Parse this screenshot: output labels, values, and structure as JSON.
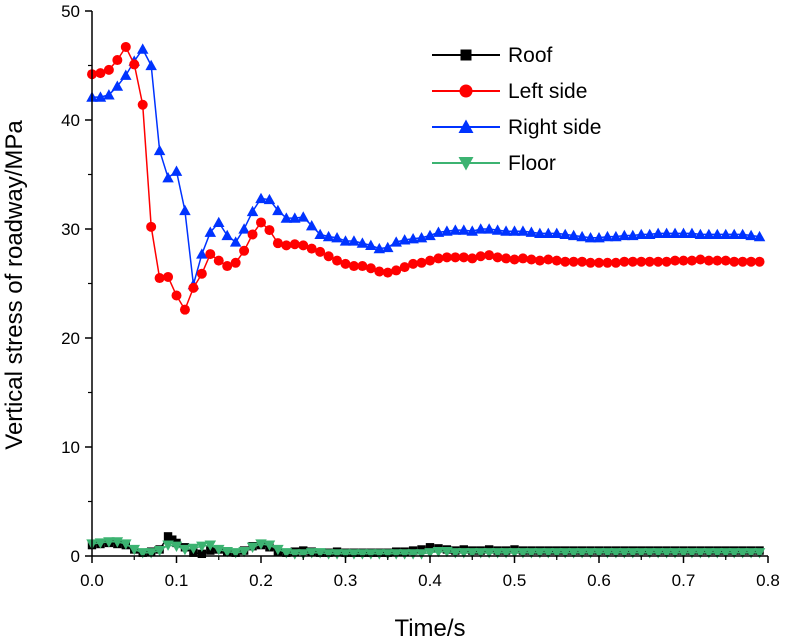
{
  "chart_data": {
    "type": "line",
    "title": "",
    "xlabel": "Time/s",
    "ylabel": "Vertical stress of roadway/MPa",
    "xlim": [
      0,
      0.8
    ],
    "ylim": [
      0,
      50
    ],
    "xticks": [
      0,
      0.1,
      0.2,
      0.3,
      0.4,
      0.5,
      0.6,
      0.7,
      0.8
    ],
    "yticks": [
      0,
      10,
      20,
      30,
      40,
      50
    ],
    "xtick_labels": [
      "0.0",
      "0.1",
      "0.2",
      "0.3",
      "0.4",
      "0.5",
      "0.6",
      "0.7",
      "0.8"
    ],
    "ytick_labels": [
      "0",
      "10",
      "20",
      "30",
      "40",
      "50"
    ],
    "legend_position": "top-right",
    "series": [
      {
        "name": "Roof",
        "color": "#000000",
        "marker": "square",
        "x": [
          0.0,
          0.01,
          0.02,
          0.03,
          0.04,
          0.05,
          0.06,
          0.07,
          0.08,
          0.09,
          0.095,
          0.1,
          0.11,
          0.12,
          0.13,
          0.14,
          0.15,
          0.16,
          0.17,
          0.18,
          0.19,
          0.2,
          0.21,
          0.22,
          0.23,
          0.24,
          0.25,
          0.26,
          0.27,
          0.28,
          0.29,
          0.3,
          0.31,
          0.32,
          0.33,
          0.34,
          0.35,
          0.36,
          0.37,
          0.38,
          0.39,
          0.4,
          0.41,
          0.42,
          0.43,
          0.44,
          0.45,
          0.46,
          0.47,
          0.48,
          0.49,
          0.5,
          0.51,
          0.52,
          0.53,
          0.54,
          0.55,
          0.56,
          0.57,
          0.58,
          0.59,
          0.6,
          0.61,
          0.62,
          0.63,
          0.64,
          0.65,
          0.66,
          0.67,
          0.68,
          0.69,
          0.7,
          0.71,
          0.72,
          0.73,
          0.74,
          0.75,
          0.76,
          0.77,
          0.78,
          0.79
        ],
        "y": [
          1.0,
          1.1,
          1.2,
          1.1,
          1.0,
          0.6,
          0.3,
          0.4,
          0.6,
          1.8,
          1.5,
          1.2,
          0.8,
          0.3,
          0.2,
          0.5,
          0.6,
          0.4,
          0.3,
          0.5,
          0.9,
          1.0,
          0.8,
          0.4,
          0.3,
          0.4,
          0.5,
          0.4,
          0.3,
          0.3,
          0.4,
          0.3,
          0.3,
          0.3,
          0.3,
          0.3,
          0.3,
          0.4,
          0.4,
          0.5,
          0.6,
          0.8,
          0.7,
          0.6,
          0.5,
          0.6,
          0.5,
          0.5,
          0.6,
          0.5,
          0.5,
          0.6,
          0.5,
          0.5,
          0.5,
          0.5,
          0.5,
          0.5,
          0.5,
          0.5,
          0.5,
          0.5,
          0.5,
          0.5,
          0.5,
          0.5,
          0.5,
          0.5,
          0.5,
          0.5,
          0.5,
          0.5,
          0.5,
          0.5,
          0.5,
          0.5,
          0.5,
          0.5,
          0.5,
          0.5,
          0.5
        ]
      },
      {
        "name": "Left side",
        "color": "#ff0000",
        "marker": "circle",
        "x": [
          0.0,
          0.01,
          0.02,
          0.03,
          0.04,
          0.05,
          0.06,
          0.07,
          0.08,
          0.09,
          0.1,
          0.11,
          0.12,
          0.13,
          0.14,
          0.15,
          0.16,
          0.17,
          0.18,
          0.19,
          0.2,
          0.21,
          0.22,
          0.23,
          0.24,
          0.25,
          0.26,
          0.27,
          0.28,
          0.29,
          0.3,
          0.31,
          0.32,
          0.33,
          0.34,
          0.35,
          0.36,
          0.37,
          0.38,
          0.39,
          0.4,
          0.41,
          0.42,
          0.43,
          0.44,
          0.45,
          0.46,
          0.47,
          0.48,
          0.49,
          0.5,
          0.51,
          0.52,
          0.53,
          0.54,
          0.55,
          0.56,
          0.57,
          0.58,
          0.59,
          0.6,
          0.61,
          0.62,
          0.63,
          0.64,
          0.65,
          0.66,
          0.67,
          0.68,
          0.69,
          0.7,
          0.71,
          0.72,
          0.73,
          0.74,
          0.75,
          0.76,
          0.77,
          0.78,
          0.79
        ],
        "y": [
          44.2,
          44.3,
          44.6,
          45.5,
          46.7,
          45.1,
          41.4,
          30.2,
          25.5,
          25.6,
          23.9,
          22.6,
          24.6,
          25.9,
          27.7,
          27.1,
          26.6,
          26.9,
          28.0,
          29.5,
          30.6,
          29.9,
          28.7,
          28.5,
          28.6,
          28.5,
          28.2,
          27.9,
          27.5,
          27.1,
          26.8,
          26.6,
          26.6,
          26.4,
          26.1,
          26.0,
          26.2,
          26.5,
          26.8,
          26.9,
          27.1,
          27.3,
          27.4,
          27.4,
          27.4,
          27.3,
          27.5,
          27.6,
          27.4,
          27.3,
          27.2,
          27.3,
          27.2,
          27.1,
          27.2,
          27.1,
          27.0,
          27.0,
          27.0,
          26.9,
          26.9,
          26.9,
          26.9,
          27.0,
          27.0,
          27.0,
          27.0,
          27.0,
          27.0,
          27.1,
          27.1,
          27.1,
          27.2,
          27.1,
          27.1,
          27.1,
          27.0,
          27.0,
          27.0,
          27.0
        ]
      },
      {
        "name": "Right side",
        "color": "#0033ff",
        "marker": "triangle-up",
        "x": [
          0.0,
          0.01,
          0.02,
          0.03,
          0.04,
          0.05,
          0.06,
          0.07,
          0.08,
          0.09,
          0.1,
          0.11,
          0.12,
          0.13,
          0.14,
          0.15,
          0.16,
          0.17,
          0.18,
          0.19,
          0.2,
          0.21,
          0.22,
          0.23,
          0.24,
          0.25,
          0.26,
          0.27,
          0.28,
          0.29,
          0.3,
          0.31,
          0.32,
          0.33,
          0.34,
          0.35,
          0.36,
          0.37,
          0.38,
          0.39,
          0.4,
          0.41,
          0.42,
          0.43,
          0.44,
          0.45,
          0.46,
          0.47,
          0.48,
          0.49,
          0.5,
          0.51,
          0.52,
          0.53,
          0.54,
          0.55,
          0.56,
          0.57,
          0.58,
          0.59,
          0.6,
          0.61,
          0.62,
          0.63,
          0.64,
          0.65,
          0.66,
          0.67,
          0.68,
          0.69,
          0.7,
          0.71,
          0.72,
          0.73,
          0.74,
          0.75,
          0.76,
          0.77,
          0.78,
          0.79
        ],
        "y": [
          42.1,
          42.1,
          42.3,
          43.1,
          44.1,
          45.4,
          46.5,
          45.0,
          37.2,
          34.7,
          35.3,
          31.7,
          24.9,
          27.7,
          29.7,
          30.6,
          29.4,
          28.8,
          30.0,
          31.6,
          32.8,
          32.7,
          31.7,
          31.0,
          31.0,
          31.1,
          30.3,
          29.5,
          29.3,
          29.2,
          28.9,
          28.9,
          28.7,
          28.5,
          28.2,
          28.3,
          28.8,
          29.0,
          29.1,
          29.2,
          29.4,
          29.7,
          29.8,
          29.9,
          29.9,
          29.8,
          30.0,
          30.0,
          29.9,
          29.8,
          29.8,
          29.8,
          29.7,
          29.6,
          29.6,
          29.6,
          29.5,
          29.4,
          29.3,
          29.2,
          29.2,
          29.3,
          29.3,
          29.4,
          29.4,
          29.5,
          29.5,
          29.6,
          29.6,
          29.6,
          29.6,
          29.6,
          29.5,
          29.5,
          29.5,
          29.5,
          29.5,
          29.5,
          29.4,
          29.3
        ]
      },
      {
        "name": "Floor",
        "color": "#3cb371",
        "marker": "triangle-down",
        "x": [
          0.0,
          0.01,
          0.02,
          0.03,
          0.04,
          0.05,
          0.06,
          0.07,
          0.08,
          0.09,
          0.1,
          0.11,
          0.12,
          0.13,
          0.14,
          0.15,
          0.16,
          0.17,
          0.18,
          0.19,
          0.2,
          0.21,
          0.22,
          0.23,
          0.24,
          0.25,
          0.26,
          0.27,
          0.28,
          0.29,
          0.3,
          0.31,
          0.32,
          0.33,
          0.34,
          0.35,
          0.36,
          0.37,
          0.38,
          0.39,
          0.4,
          0.41,
          0.42,
          0.43,
          0.44,
          0.45,
          0.46,
          0.47,
          0.48,
          0.49,
          0.5,
          0.51,
          0.52,
          0.53,
          0.54,
          0.55,
          0.56,
          0.57,
          0.58,
          0.59,
          0.6,
          0.61,
          0.62,
          0.63,
          0.64,
          0.65,
          0.66,
          0.67,
          0.68,
          0.69,
          0.7,
          0.71,
          0.72,
          0.73,
          0.74,
          0.75,
          0.76,
          0.77,
          0.78,
          0.79
        ],
        "y": [
          1.1,
          1.2,
          1.3,
          1.3,
          1.1,
          0.6,
          0.3,
          0.3,
          0.5,
          1.0,
          0.9,
          0.6,
          0.7,
          0.9,
          1.0,
          0.6,
          0.4,
          0.3,
          0.4,
          0.8,
          1.1,
          1.0,
          0.6,
          0.3,
          0.2,
          0.2,
          0.3,
          0.3,
          0.2,
          0.2,
          0.2,
          0.2,
          0.2,
          0.2,
          0.2,
          0.2,
          0.2,
          0.2,
          0.2,
          0.2,
          0.3,
          0.4,
          0.4,
          0.3,
          0.3,
          0.3,
          0.3,
          0.3,
          0.3,
          0.3,
          0.3,
          0.3,
          0.3,
          0.3,
          0.3,
          0.3,
          0.3,
          0.3,
          0.3,
          0.3,
          0.3,
          0.3,
          0.3,
          0.3,
          0.3,
          0.3,
          0.3,
          0.3,
          0.3,
          0.3,
          0.3,
          0.3,
          0.3,
          0.3,
          0.3,
          0.3,
          0.3,
          0.3,
          0.3,
          0.3
        ]
      }
    ]
  }
}
